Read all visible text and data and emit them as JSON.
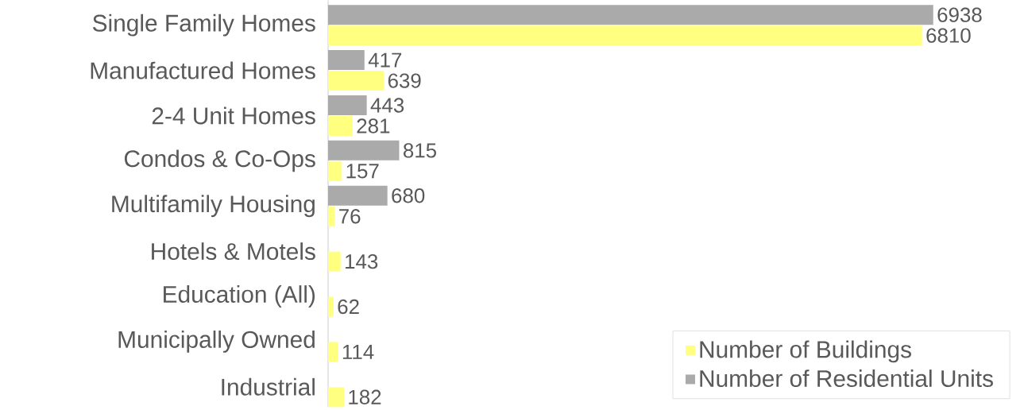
{
  "chart_data": {
    "type": "bar",
    "orientation": "horizontal",
    "data_labels": true,
    "legend": "bottom right",
    "categories": [
      "Single Family Homes",
      "Manufactured Homes",
      "2-4 Unit Homes",
      "Condos & Co-Ops",
      "Multifamily Housing",
      "Hotels & Motels",
      "Education (All)",
      "Municipally Owned",
      "Industrial"
    ],
    "series": [
      {
        "name": "Number of Buildings",
        "color": "#ffff80",
        "values": [
          6810,
          639,
          281,
          157,
          76,
          143,
          62,
          114,
          182
        ]
      },
      {
        "name": "Number of Residential Units",
        "color": "#aaaaaa",
        "values": [
          6938,
          417,
          443,
          815,
          680,
          null,
          null,
          null,
          null
        ]
      }
    ]
  }
}
